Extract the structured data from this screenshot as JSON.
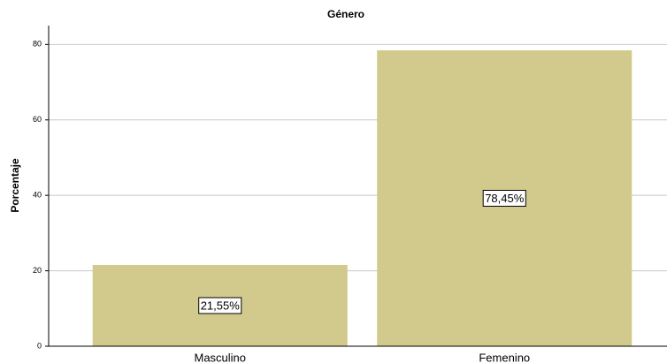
{
  "chart_data": {
    "type": "bar",
    "title": "Género",
    "y_label": "Porcentaje",
    "categories": [
      "Masculino",
      "Femenino"
    ],
    "values": [
      21.55,
      78.45
    ],
    "value_labels": [
      "21,55%",
      "78,45%"
    ],
    "color": "#d2ca8d",
    "ylim": [
      0,
      85
    ],
    "yticks": [
      0,
      20,
      40,
      60,
      80
    ],
    "grid": true
  }
}
